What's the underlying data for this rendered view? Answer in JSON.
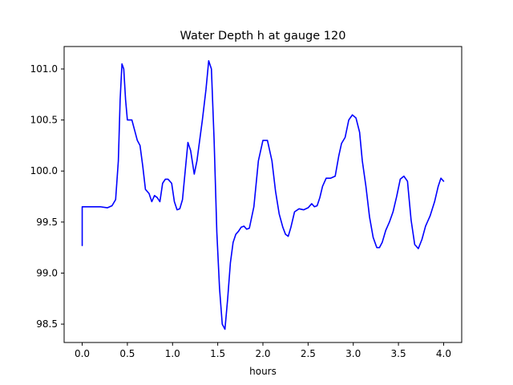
{
  "chart_data": {
    "type": "line",
    "title": "Water Depth h at gauge 120",
    "xlabel": "hours",
    "ylabel": "",
    "xlim": [
      -0.2,
      4.2
    ],
    "ylim": [
      98.32,
      101.22
    ],
    "xticks": [
      0.0,
      0.5,
      1.0,
      1.5,
      2.0,
      2.5,
      3.0,
      3.5,
      4.0
    ],
    "xtick_labels": [
      "0.0",
      "0.5",
      "1.0",
      "1.5",
      "2.0",
      "2.5",
      "3.0",
      "3.5",
      "4.0"
    ],
    "yticks": [
      98.5,
      99.0,
      99.5,
      100.0,
      100.5,
      101.0
    ],
    "ytick_labels": [
      "98.5",
      "99.0",
      "99.5",
      "100.0",
      "100.5",
      "101.0"
    ],
    "grid": false,
    "legend": "none",
    "series": [
      {
        "color": "#0000ff",
        "x": [
          0.0,
          0.0,
          0.05,
          0.1,
          0.2,
          0.28,
          0.33,
          0.37,
          0.4,
          0.42,
          0.44,
          0.46,
          0.48,
          0.5,
          0.52,
          0.55,
          0.58,
          0.61,
          0.64,
          0.67,
          0.7,
          0.74,
          0.77,
          0.8,
          0.83,
          0.86,
          0.89,
          0.92,
          0.95,
          0.99,
          1.02,
          1.05,
          1.08,
          1.11,
          1.14,
          1.17,
          1.2,
          1.24,
          1.27,
          1.3,
          1.33,
          1.37,
          1.4,
          1.43,
          1.46,
          1.49,
          1.52,
          1.55,
          1.58,
          1.61,
          1.64,
          1.67,
          1.7,
          1.73,
          1.76,
          1.79,
          1.82,
          1.85,
          1.9,
          1.95,
          2.0,
          2.05,
          2.1,
          2.14,
          2.18,
          2.22,
          2.25,
          2.28,
          2.31,
          2.35,
          2.4,
          2.45,
          2.5,
          2.54,
          2.57,
          2.6,
          2.63,
          2.66,
          2.7,
          2.75,
          2.8,
          2.84,
          2.87,
          2.91,
          2.95,
          2.99,
          3.03,
          3.07,
          3.1,
          3.14,
          3.18,
          3.22,
          3.26,
          3.29,
          3.32,
          3.36,
          3.4,
          3.44,
          3.48,
          3.52,
          3.56,
          3.6,
          3.64,
          3.68,
          3.72,
          3.76,
          3.8,
          3.85,
          3.9,
          3.94,
          3.97,
          4.0
        ],
        "y": [
          99.27,
          99.65,
          99.65,
          99.65,
          99.65,
          99.64,
          99.66,
          99.72,
          100.1,
          100.7,
          101.05,
          101.0,
          100.7,
          100.5,
          100.5,
          100.5,
          100.4,
          100.3,
          100.25,
          100.05,
          99.82,
          99.78,
          99.7,
          99.76,
          99.74,
          99.7,
          99.88,
          99.92,
          99.92,
          99.88,
          99.7,
          99.62,
          99.63,
          99.72,
          100.0,
          100.28,
          100.2,
          99.97,
          100.1,
          100.3,
          100.5,
          100.8,
          101.08,
          101.0,
          100.3,
          99.4,
          98.85,
          98.5,
          98.45,
          98.75,
          99.1,
          99.3,
          99.38,
          99.41,
          99.45,
          99.46,
          99.43,
          99.44,
          99.65,
          100.1,
          100.3,
          100.3,
          100.1,
          99.8,
          99.58,
          99.45,
          99.38,
          99.36,
          99.45,
          99.6,
          99.63,
          99.62,
          99.64,
          99.68,
          99.65,
          99.66,
          99.74,
          99.85,
          99.93,
          99.93,
          99.95,
          100.15,
          100.27,
          100.33,
          100.5,
          100.55,
          100.52,
          100.38,
          100.1,
          99.85,
          99.55,
          99.35,
          99.25,
          99.25,
          99.3,
          99.42,
          99.5,
          99.6,
          99.75,
          99.92,
          99.95,
          99.9,
          99.52,
          99.28,
          99.24,
          99.33,
          99.46,
          99.56,
          99.7,
          99.85,
          99.93,
          99.9
        ]
      }
    ]
  }
}
